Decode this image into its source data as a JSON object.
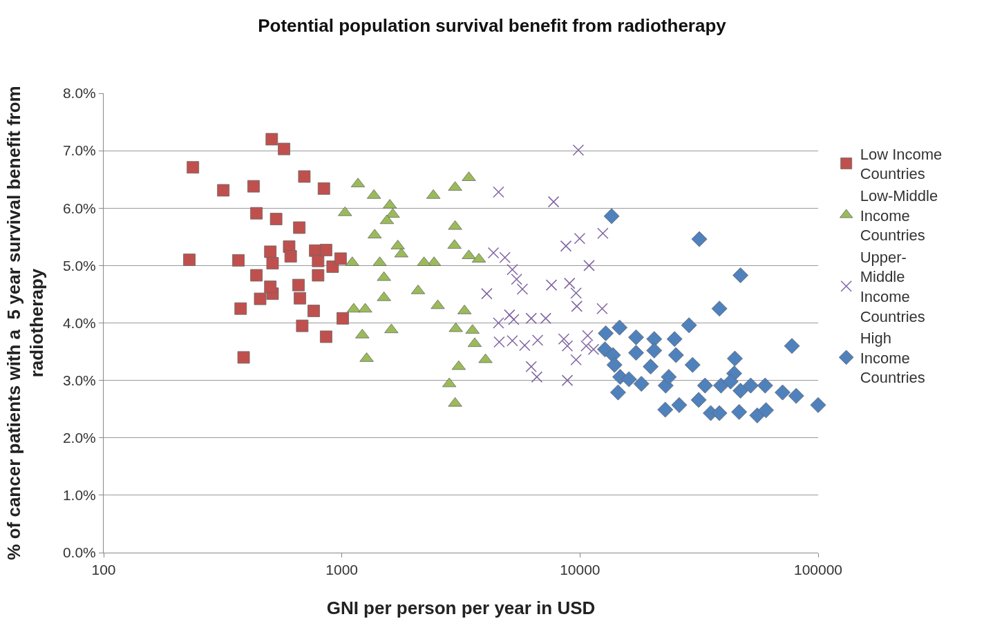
{
  "chart_data": {
    "type": "scatter",
    "title": "Potential population survival benefit from radiotherapy",
    "xlabel": "GNI per person per year in USD",
    "ylabel": "% of cancer patients with a  5 year survival benefit from radiotherapy",
    "log": "x",
    "xlim": [
      100,
      100000
    ],
    "xticks": [
      100,
      1000,
      10000,
      100000
    ],
    "ylim": [
      0,
      8
    ],
    "yticks": [
      {
        "value": 0,
        "label": "0.0%"
      },
      {
        "value": 1,
        "label": "1.0%"
      },
      {
        "value": 2,
        "label": "2.0%"
      },
      {
        "value": 3,
        "label": "3.0%"
      },
      {
        "value": 4,
        "label": "4.0%"
      },
      {
        "value": 5,
        "label": "5.0%"
      },
      {
        "value": 6,
        "label": "6.0%"
      },
      {
        "value": 7,
        "label": "7.0%"
      },
      {
        "value": 8,
        "label": "8.0%"
      }
    ],
    "grid": "y",
    "legend": "right",
    "series": [
      {
        "name": "Low Income Countries",
        "color": "#c0504d",
        "marker": "square",
        "x": [
          229,
          237,
          318,
          426,
          438,
          530,
          508,
          572,
          696,
          841,
          663,
          368,
          376,
          387,
          438,
          454,
          501,
          512,
          512,
          501,
          601,
          610,
          658,
          667,
          682,
          773,
          795,
          762,
          795,
          859,
          915,
          859,
          988,
          1009
        ],
        "values": [
          5.1,
          6.71,
          6.31,
          6.38,
          5.91,
          5.81,
          7.2,
          7.03,
          6.55,
          6.34,
          5.66,
          5.09,
          4.25,
          3.4,
          4.83,
          4.42,
          5.24,
          5.04,
          4.51,
          4.63,
          5.33,
          5.16,
          4.66,
          4.43,
          3.95,
          5.26,
          5.08,
          4.21,
          4.83,
          5.27,
          4.98,
          3.76,
          5.12,
          4.08
        ]
      },
      {
        "name": "Low-Middle Income Countries",
        "color": "#9bbb59",
        "marker": "triangle",
        "x": [
          1169,
          1364,
          1031,
          1591,
          1637,
          1546,
          1374,
          1718,
          1778,
          1106,
          1443,
          1503,
          1503,
          2090,
          1122,
          1254,
          1219,
          1271,
          1614,
          2439,
          2213,
          2423,
          2990,
          3415,
          2528,
          2990,
          2972,
          3415,
          3764,
          3010,
          3273,
          3537,
          3613,
          4010,
          3096,
          2826,
          2990
        ],
        "values": [
          6.42,
          6.22,
          5.92,
          6.05,
          5.89,
          5.78,
          5.53,
          5.34,
          5.2,
          5.05,
          5.05,
          4.79,
          4.44,
          4.56,
          4.24,
          4.24,
          3.79,
          3.38,
          3.88,
          5.05,
          5.05,
          6.22,
          6.36,
          6.53,
          4.3,
          5.68,
          5.35,
          5.17,
          5.11,
          3.9,
          4.21,
          3.87,
          3.64,
          3.36,
          3.24,
          2.94,
          2.6
        ]
      },
      {
        "name": "Upper-Middle Income Countries",
        "color": "#8064a2",
        "marker": "cross",
        "x": [
          4550,
          9840,
          7745,
          12470,
          9970,
          8730,
          10920,
          4330,
          4840,
          5200,
          5420,
          5730,
          4060,
          7590,
          9040,
          9630,
          9700,
          12390,
          4550,
          5060,
          5270,
          6240,
          7180,
          5200,
          4580,
          5860,
          6640,
          8550,
          8850,
          10770,
          10620,
          9630,
          6240,
          6590,
          8850,
          11400
        ],
        "values": [
          6.28,
          7.01,
          6.11,
          5.56,
          5.47,
          5.34,
          5.0,
          5.22,
          5.14,
          4.93,
          4.76,
          4.59,
          4.51,
          4.66,
          4.69,
          4.52,
          4.29,
          4.25,
          4.0,
          4.14,
          4.06,
          4.08,
          4.08,
          3.69,
          3.67,
          3.61,
          3.7,
          3.72,
          3.6,
          3.78,
          3.6,
          3.36,
          3.24,
          3.06,
          3.0,
          3.54
        ]
      },
      {
        "name": "High Income Countries",
        "color": "#4f81bd",
        "marker": "diamond",
        "x": [
          13580,
          31700,
          47200,
          38500,
          28700,
          77600,
          12830,
          14660,
          12730,
          13760,
          13960,
          17200,
          20500,
          24950,
          17200,
          20500,
          25300,
          19800,
          29700,
          44700,
          44400,
          14750,
          16060,
          18100,
          22900,
          23600,
          14450,
          33500,
          39100,
          42900,
          47200,
          52100,
          59900,
          31500,
          35400,
          38500,
          22800,
          26100,
          46600,
          55500,
          60400,
          70900,
          80900,
          100000
        ],
        "values": [
          5.86,
          5.46,
          4.83,
          4.25,
          3.96,
          3.6,
          3.82,
          3.92,
          3.54,
          3.44,
          3.27,
          3.75,
          3.72,
          3.72,
          3.48,
          3.52,
          3.44,
          3.24,
          3.27,
          3.38,
          3.12,
          3.06,
          3.02,
          2.94,
          2.91,
          3.06,
          2.79,
          2.91,
          2.91,
          2.98,
          2.82,
          2.91,
          2.91,
          2.66,
          2.43,
          2.43,
          2.49,
          2.57,
          2.45,
          2.39,
          2.48,
          2.79,
          2.73,
          2.57
        ]
      }
    ]
  }
}
